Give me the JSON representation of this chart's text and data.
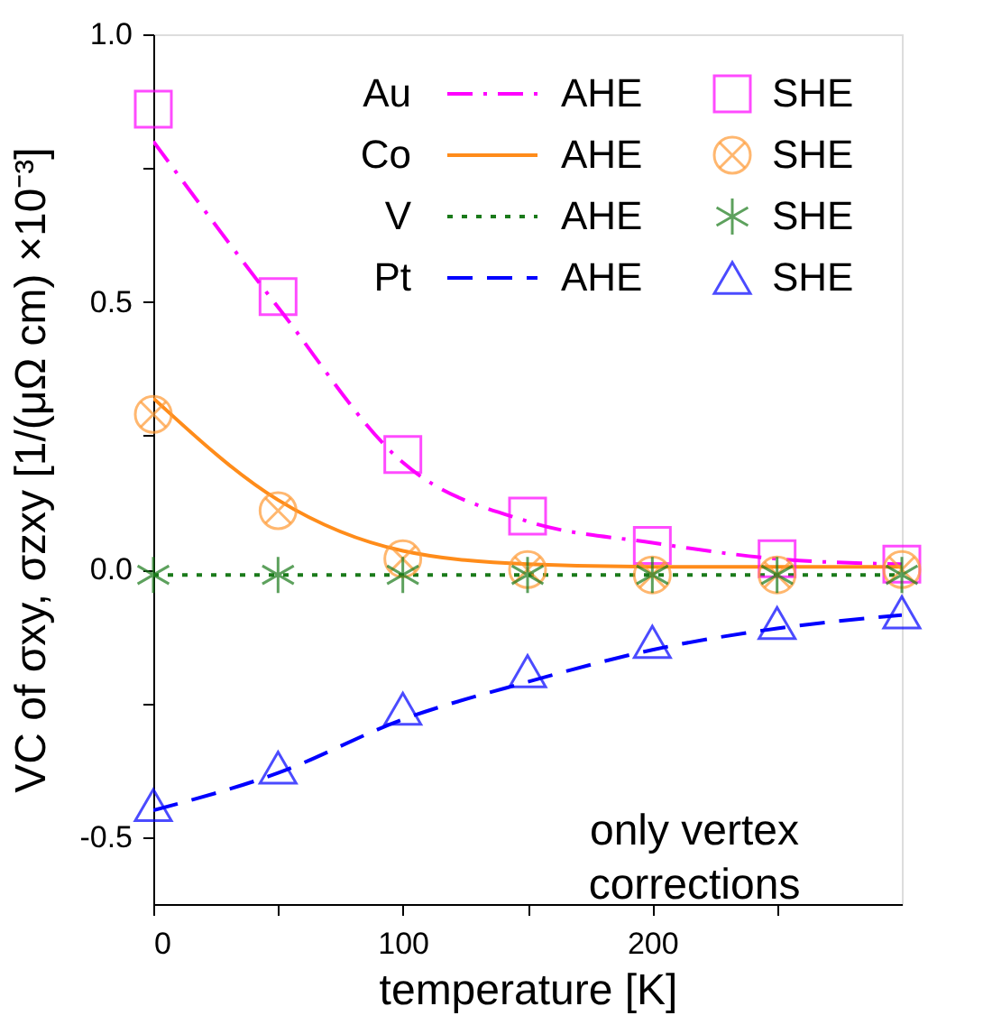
{
  "chart_data": {
    "type": "line",
    "xlabel": "temperature   [K]",
    "ylabel": "VC of σxy, σzxy   [1/(μΩ cm) ×10⁻³]",
    "x": [
      0,
      50,
      100,
      150,
      200,
      250,
      300
    ],
    "xlim": [
      0,
      300
    ],
    "xticks": [
      0,
      {
        "value": 50,
        "label": null
      },
      100,
      {
        "value": 150,
        "label": null
      },
      200,
      {
        "value": 250,
        "label": null
      }
    ],
    "ylim": [
      -0.625,
      1.0
    ],
    "yticks": [
      {
        "value": -0.5,
        "label": "-0.5"
      },
      {
        "value": -0.25,
        "label": null
      },
      {
        "value": 0,
        "label": "0.0"
      },
      {
        "value": 0.25,
        "label": null
      },
      {
        "value": 0.5,
        "label": "0.5"
      },
      {
        "value": 0.75,
        "label": null
      },
      {
        "value": 1.0,
        "label": "1.0"
      }
    ],
    "grid": false,
    "legend": "top right",
    "series": [
      {
        "name": "Au AHE",
        "type": "line",
        "line_style": "dashdot",
        "marker": "none",
        "color": "#ff00ff",
        "values": [
          0.8,
          0.49,
          0.2,
          0.09,
          0.05,
          0.02,
          0.01
        ]
      },
      {
        "name": "Co AHE",
        "type": "line",
        "line_style": "solid",
        "marker": "none",
        "color": "#ff8c1a",
        "values": [
          0.32,
          0.13,
          0.035,
          0.01,
          0.005,
          0.005,
          0.005
        ]
      },
      {
        "name": "V AHE",
        "type": "line",
        "line_style": "dotted",
        "marker": "none",
        "color": "#1a7a1a",
        "values": [
          -0.01,
          -0.01,
          -0.01,
          -0.01,
          -0.01,
          -0.01,
          -0.01
        ]
      },
      {
        "name": "Pt AHE",
        "type": "line",
        "line_style": "dashed",
        "marker": "none",
        "color": "#0000ff",
        "values": [
          -0.45,
          -0.38,
          -0.28,
          -0.21,
          -0.15,
          -0.11,
          -0.085
        ]
      },
      {
        "name": "SHE",
        "type": "scatter",
        "marker": "square",
        "color": "#ff00ff",
        "values": [
          0.86,
          0.51,
          0.215,
          0.1,
          0.045,
          0.02,
          0.01
        ]
      },
      {
        "name": "SHE",
        "type": "scatter",
        "marker": "circle",
        "color": "#ff9933",
        "values": [
          0.29,
          0.11,
          0.02,
          0.0,
          -0.01,
          -0.01,
          0.0
        ]
      },
      {
        "name": "SHE",
        "type": "scatter",
        "marker": "cross",
        "color": "#1a7a1a",
        "values": [
          -0.01,
          -0.01,
          -0.01,
          -0.01,
          -0.01,
          -0.01,
          -0.01
        ]
      },
      {
        "name": "SHE",
        "type": "scatter",
        "marker": "triangle",
        "color": "#0000ff",
        "values": [
          -0.44,
          -0.37,
          -0.26,
          -0.19,
          -0.135,
          -0.1,
          -0.08
        ]
      }
    ],
    "annotations": [
      "only vertex\ncorrections"
    ]
  }
}
